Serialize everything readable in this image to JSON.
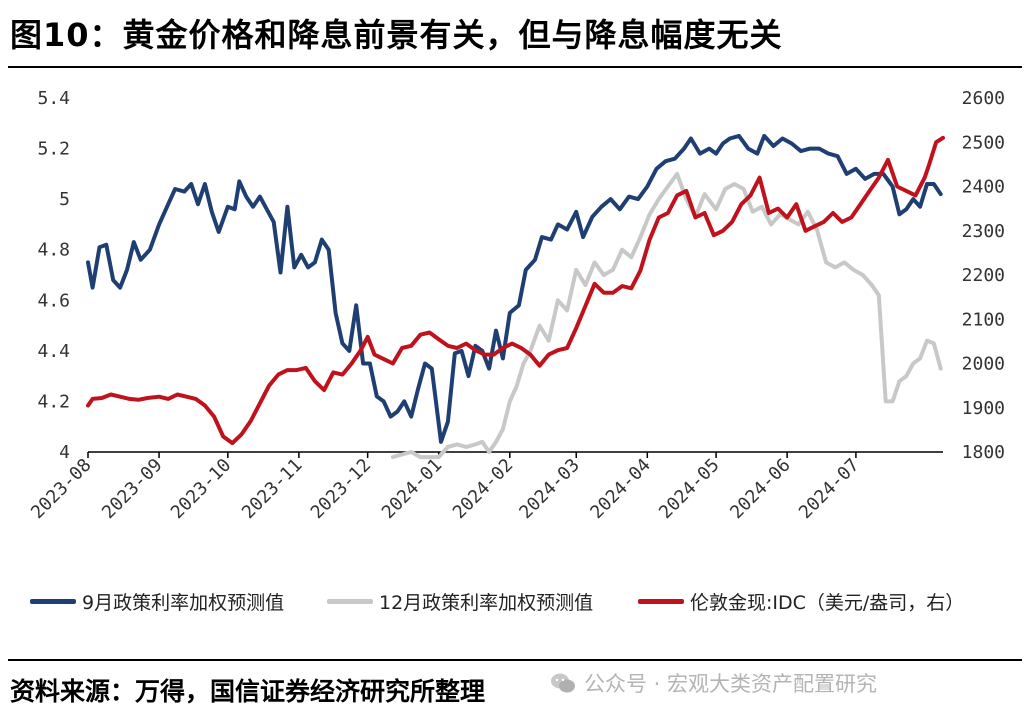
{
  "page": {
    "title": "图10：黄金价格和降息前景有关，但与降息幅度无关",
    "source": "资料来源：万得，国信证券经济研究所整理",
    "watermark": "公众号 · 宏观大类资产配置研究"
  },
  "chart_data": {
    "type": "line",
    "title": "",
    "xlabel": "",
    "ylabel": "",
    "x_ticks": [
      "2023-08",
      "2023-09",
      "2023-10",
      "2023-11",
      "2023-12",
      "2024-01",
      "2024-02",
      "2024-03",
      "2024-04",
      "2024-05",
      "2024-06",
      "2024-07"
    ],
    "y_left": {
      "range": [
        4,
        5.4
      ],
      "ticks": [
        "4",
        "4.2",
        "4.4",
        "4.6",
        "4.8",
        "5",
        "5.2",
        "5.4"
      ]
    },
    "y_right": {
      "range": [
        1800,
        2600
      ],
      "ticks": [
        "1800",
        "1900",
        "2000",
        "2100",
        "2200",
        "2300",
        "2400",
        "2500",
        "2600"
      ]
    },
    "grid": false,
    "legend_position": "bottom",
    "series": [
      {
        "name": "9月政策利率加权预测值",
        "axis": "left",
        "color": "#1f3f73",
        "points": [
          [
            "2023-08-01",
            4.75
          ],
          [
            "2023-08-03",
            4.65
          ],
          [
            "2023-08-06",
            4.81
          ],
          [
            "2023-08-09",
            4.82
          ],
          [
            "2023-08-12",
            4.68
          ],
          [
            "2023-08-15",
            4.65
          ],
          [
            "2023-08-18",
            4.72
          ],
          [
            "2023-08-21",
            4.83
          ],
          [
            "2023-08-24",
            4.76
          ],
          [
            "2023-08-28",
            4.8
          ],
          [
            "2023-09-01",
            4.9
          ],
          [
            "2023-09-05",
            4.98
          ],
          [
            "2023-09-08",
            5.04
          ],
          [
            "2023-09-12",
            5.03
          ],
          [
            "2023-09-15",
            5.06
          ],
          [
            "2023-09-18",
            4.98
          ],
          [
            "2023-09-21",
            5.06
          ],
          [
            "2023-09-24",
            4.95
          ],
          [
            "2023-09-27",
            4.87
          ],
          [
            "2023-10-01",
            4.97
          ],
          [
            "2023-10-04",
            4.96
          ],
          [
            "2023-10-06",
            5.07
          ],
          [
            "2023-10-09",
            5.01
          ],
          [
            "2023-10-12",
            4.97
          ],
          [
            "2023-10-15",
            5.01
          ],
          [
            "2023-10-18",
            4.96
          ],
          [
            "2023-10-21",
            4.91
          ],
          [
            "2023-10-24",
            4.71
          ],
          [
            "2023-10-27",
            4.97
          ],
          [
            "2023-10-30",
            4.73
          ],
          [
            "2023-11-02",
            4.78
          ],
          [
            "2023-11-05",
            4.73
          ],
          [
            "2023-11-08",
            4.75
          ],
          [
            "2023-11-11",
            4.84
          ],
          [
            "2023-11-14",
            4.8
          ],
          [
            "2023-11-17",
            4.55
          ],
          [
            "2023-11-20",
            4.43
          ],
          [
            "2023-11-23",
            4.4
          ],
          [
            "2023-11-26",
            4.58
          ],
          [
            "2023-11-29",
            4.35
          ],
          [
            "2023-12-02",
            4.35
          ],
          [
            "2023-12-05",
            4.22
          ],
          [
            "2023-12-08",
            4.2
          ],
          [
            "2023-12-11",
            4.14
          ],
          [
            "2023-12-14",
            4.16
          ],
          [
            "2023-12-17",
            4.2
          ],
          [
            "2023-12-20",
            4.14
          ],
          [
            "2023-12-23",
            4.25
          ],
          [
            "2023-12-26",
            4.35
          ],
          [
            "2023-12-29",
            4.33
          ],
          [
            "2024-01-02",
            4.04
          ],
          [
            "2024-01-05",
            4.12
          ],
          [
            "2024-01-08",
            4.39
          ],
          [
            "2024-01-11",
            4.4
          ],
          [
            "2024-01-14",
            4.3
          ],
          [
            "2024-01-17",
            4.42
          ],
          [
            "2024-01-20",
            4.4
          ],
          [
            "2024-01-23",
            4.33
          ],
          [
            "2024-01-26",
            4.48
          ],
          [
            "2024-01-29",
            4.37
          ],
          [
            "2024-02-01",
            4.55
          ],
          [
            "2024-02-05",
            4.58
          ],
          [
            "2024-02-08",
            4.72
          ],
          [
            "2024-02-12",
            4.76
          ],
          [
            "2024-02-15",
            4.85
          ],
          [
            "2024-02-19",
            4.84
          ],
          [
            "2024-02-22",
            4.9
          ],
          [
            "2024-02-26",
            4.88
          ],
          [
            "2024-03-01",
            4.95
          ],
          [
            "2024-03-04",
            4.85
          ],
          [
            "2024-03-08",
            4.93
          ],
          [
            "2024-03-12",
            4.97
          ],
          [
            "2024-03-16",
            5.0
          ],
          [
            "2024-03-20",
            4.96
          ],
          [
            "2024-03-24",
            5.01
          ],
          [
            "2024-03-28",
            5.0
          ],
          [
            "2024-04-01",
            5.05
          ],
          [
            "2024-04-05",
            5.12
          ],
          [
            "2024-04-09",
            5.15
          ],
          [
            "2024-04-13",
            5.16
          ],
          [
            "2024-04-17",
            5.2
          ],
          [
            "2024-04-20",
            5.24
          ],
          [
            "2024-04-24",
            5.18
          ],
          [
            "2024-04-28",
            5.2
          ],
          [
            "2024-05-01",
            5.18
          ],
          [
            "2024-05-04",
            5.22
          ],
          [
            "2024-05-07",
            5.24
          ],
          [
            "2024-05-11",
            5.25
          ],
          [
            "2024-05-15",
            5.2
          ],
          [
            "2024-05-19",
            5.18
          ],
          [
            "2024-05-22",
            5.25
          ],
          [
            "2024-05-26",
            5.21
          ],
          [
            "2024-05-30",
            5.24
          ],
          [
            "2024-06-03",
            5.22
          ],
          [
            "2024-06-07",
            5.19
          ],
          [
            "2024-06-11",
            5.2
          ],
          [
            "2024-06-15",
            5.2
          ],
          [
            "2024-06-19",
            5.18
          ],
          [
            "2024-06-23",
            5.17
          ],
          [
            "2024-06-27",
            5.1
          ],
          [
            "2024-07-01",
            5.12
          ],
          [
            "2024-07-05",
            5.08
          ],
          [
            "2024-07-09",
            5.1
          ],
          [
            "2024-07-13",
            5.1
          ],
          [
            "2024-07-17",
            5.05
          ],
          [
            "2024-07-20",
            4.94
          ],
          [
            "2024-07-23",
            4.96
          ],
          [
            "2024-07-26",
            5.0
          ],
          [
            "2024-07-29",
            4.97
          ],
          [
            "2024-08-01",
            5.06
          ],
          [
            "2024-08-04",
            5.06
          ],
          [
            "2024-08-07",
            5.02
          ]
        ]
      },
      {
        "name": "12月政策利率加权预测值",
        "axis": "left",
        "color": "#c8c8c8",
        "points": [
          [
            "2023-12-12",
            3.98
          ],
          [
            "2023-12-16",
            3.99
          ],
          [
            "2023-12-20",
            4.0
          ],
          [
            "2023-12-24",
            3.98
          ],
          [
            "2024-01-01",
            3.98
          ],
          [
            "2024-01-05",
            4.02
          ],
          [
            "2024-01-09",
            4.03
          ],
          [
            "2024-01-13",
            4.02
          ],
          [
            "2024-01-17",
            4.03
          ],
          [
            "2024-01-20",
            4.04
          ],
          [
            "2024-01-23",
            4.0
          ],
          [
            "2024-01-26",
            4.04
          ],
          [
            "2024-01-29",
            4.09
          ],
          [
            "2024-02-01",
            4.2
          ],
          [
            "2024-02-04",
            4.26
          ],
          [
            "2024-02-07",
            4.35
          ],
          [
            "2024-02-10",
            4.4
          ],
          [
            "2024-02-14",
            4.5
          ],
          [
            "2024-02-18",
            4.44
          ],
          [
            "2024-02-22",
            4.6
          ],
          [
            "2024-02-26",
            4.56
          ],
          [
            "2024-03-01",
            4.72
          ],
          [
            "2024-03-05",
            4.66
          ],
          [
            "2024-03-09",
            4.75
          ],
          [
            "2024-03-13",
            4.7
          ],
          [
            "2024-03-17",
            4.72
          ],
          [
            "2024-03-21",
            4.8
          ],
          [
            "2024-03-25",
            4.77
          ],
          [
            "2024-03-29",
            4.85
          ],
          [
            "2024-04-02",
            4.94
          ],
          [
            "2024-04-06",
            5.0
          ],
          [
            "2024-04-10",
            5.05
          ],
          [
            "2024-04-14",
            5.1
          ],
          [
            "2024-04-18",
            5.0
          ],
          [
            "2024-04-22",
            4.93
          ],
          [
            "2024-04-26",
            5.02
          ],
          [
            "2024-05-01",
            4.96
          ],
          [
            "2024-05-05",
            5.04
          ],
          [
            "2024-05-09",
            5.06
          ],
          [
            "2024-05-13",
            5.04
          ],
          [
            "2024-05-17",
            4.95
          ],
          [
            "2024-05-21",
            4.97
          ],
          [
            "2024-05-25",
            4.9
          ],
          [
            "2024-05-29",
            4.94
          ],
          [
            "2024-06-02",
            4.92
          ],
          [
            "2024-06-06",
            4.9
          ],
          [
            "2024-06-10",
            4.95
          ],
          [
            "2024-06-14",
            4.88
          ],
          [
            "2024-06-18",
            4.75
          ],
          [
            "2024-06-22",
            4.73
          ],
          [
            "2024-06-26",
            4.75
          ],
          [
            "2024-06-30",
            4.72
          ],
          [
            "2024-07-04",
            4.7
          ],
          [
            "2024-07-08",
            4.66
          ],
          [
            "2024-07-11",
            4.62
          ],
          [
            "2024-07-14",
            4.2
          ],
          [
            "2024-07-17",
            4.2
          ],
          [
            "2024-07-20",
            4.28
          ],
          [
            "2024-07-23",
            4.3
          ],
          [
            "2024-07-26",
            4.35
          ],
          [
            "2024-07-29",
            4.37
          ],
          [
            "2024-08-01",
            4.44
          ],
          [
            "2024-08-04",
            4.43
          ],
          [
            "2024-08-07",
            4.33
          ]
        ]
      },
      {
        "name": "伦敦金现:IDC（美元/盎司，右）",
        "axis": "right",
        "color": "#c0121c",
        "points": [
          [
            "2023-08-01",
            1905
          ],
          [
            "2023-08-03",
            1920
          ],
          [
            "2023-08-07",
            1922
          ],
          [
            "2023-08-11",
            1930
          ],
          [
            "2023-08-15",
            1925
          ],
          [
            "2023-08-19",
            1920
          ],
          [
            "2023-08-23",
            1918
          ],
          [
            "2023-08-27",
            1922
          ],
          [
            "2023-09-01",
            1925
          ],
          [
            "2023-09-05",
            1920
          ],
          [
            "2023-09-09",
            1930
          ],
          [
            "2023-09-13",
            1925
          ],
          [
            "2023-09-17",
            1920
          ],
          [
            "2023-09-21",
            1905
          ],
          [
            "2023-09-25",
            1880
          ],
          [
            "2023-09-29",
            1835
          ],
          [
            "2023-10-03",
            1820
          ],
          [
            "2023-10-07",
            1840
          ],
          [
            "2023-10-11",
            1870
          ],
          [
            "2023-10-15",
            1910
          ],
          [
            "2023-10-19",
            1950
          ],
          [
            "2023-10-23",
            1975
          ],
          [
            "2023-10-27",
            1985
          ],
          [
            "2023-10-31",
            1985
          ],
          [
            "2023-11-04",
            1990
          ],
          [
            "2023-11-08",
            1960
          ],
          [
            "2023-11-12",
            1940
          ],
          [
            "2023-11-16",
            1980
          ],
          [
            "2023-11-20",
            1975
          ],
          [
            "2023-11-24",
            2000
          ],
          [
            "2023-11-28",
            2030
          ],
          [
            "2023-12-01",
            2060
          ],
          [
            "2023-12-04",
            2020
          ],
          [
            "2023-12-08",
            2010
          ],
          [
            "2023-12-12",
            2000
          ],
          [
            "2023-12-16",
            2035
          ],
          [
            "2023-12-20",
            2040
          ],
          [
            "2023-12-24",
            2065
          ],
          [
            "2023-12-28",
            2070
          ],
          [
            "2024-01-01",
            2055
          ],
          [
            "2024-01-05",
            2040
          ],
          [
            "2024-01-09",
            2035
          ],
          [
            "2024-01-13",
            2045
          ],
          [
            "2024-01-17",
            2030
          ],
          [
            "2024-01-21",
            2020
          ],
          [
            "2024-01-25",
            2020
          ],
          [
            "2024-01-29",
            2035
          ],
          [
            "2024-02-02",
            2045
          ],
          [
            "2024-02-06",
            2035
          ],
          [
            "2024-02-10",
            2020
          ],
          [
            "2024-02-14",
            1995
          ],
          [
            "2024-02-18",
            2020
          ],
          [
            "2024-02-22",
            2030
          ],
          [
            "2024-02-26",
            2035
          ],
          [
            "2024-03-01",
            2080
          ],
          [
            "2024-03-05",
            2130
          ],
          [
            "2024-03-09",
            2180
          ],
          [
            "2024-03-13",
            2160
          ],
          [
            "2024-03-17",
            2160
          ],
          [
            "2024-03-21",
            2175
          ],
          [
            "2024-03-25",
            2170
          ],
          [
            "2024-03-29",
            2210
          ],
          [
            "2024-04-02",
            2280
          ],
          [
            "2024-04-06",
            2330
          ],
          [
            "2024-04-10",
            2340
          ],
          [
            "2024-04-14",
            2380
          ],
          [
            "2024-04-18",
            2390
          ],
          [
            "2024-04-22",
            2330
          ],
          [
            "2024-04-26",
            2340
          ],
          [
            "2024-04-30",
            2290
          ],
          [
            "2024-05-04",
            2300
          ],
          [
            "2024-05-08",
            2320
          ],
          [
            "2024-05-12",
            2360
          ],
          [
            "2024-05-16",
            2380
          ],
          [
            "2024-05-20",
            2420
          ],
          [
            "2024-05-24",
            2340
          ],
          [
            "2024-05-28",
            2350
          ],
          [
            "2024-06-01",
            2330
          ],
          [
            "2024-06-05",
            2360
          ],
          [
            "2024-06-09",
            2300
          ],
          [
            "2024-06-13",
            2310
          ],
          [
            "2024-06-17",
            2320
          ],
          [
            "2024-06-21",
            2340
          ],
          [
            "2024-06-25",
            2320
          ],
          [
            "2024-06-29",
            2330
          ],
          [
            "2024-07-03",
            2360
          ],
          [
            "2024-07-07",
            2390
          ],
          [
            "2024-07-11",
            2420
          ],
          [
            "2024-07-15",
            2460
          ],
          [
            "2024-07-19",
            2400
          ],
          [
            "2024-07-23",
            2390
          ],
          [
            "2024-07-27",
            2380
          ],
          [
            "2024-07-31",
            2420
          ],
          [
            "2024-08-02",
            2450
          ],
          [
            "2024-08-05",
            2500
          ],
          [
            "2024-08-08",
            2510
          ]
        ]
      }
    ]
  }
}
